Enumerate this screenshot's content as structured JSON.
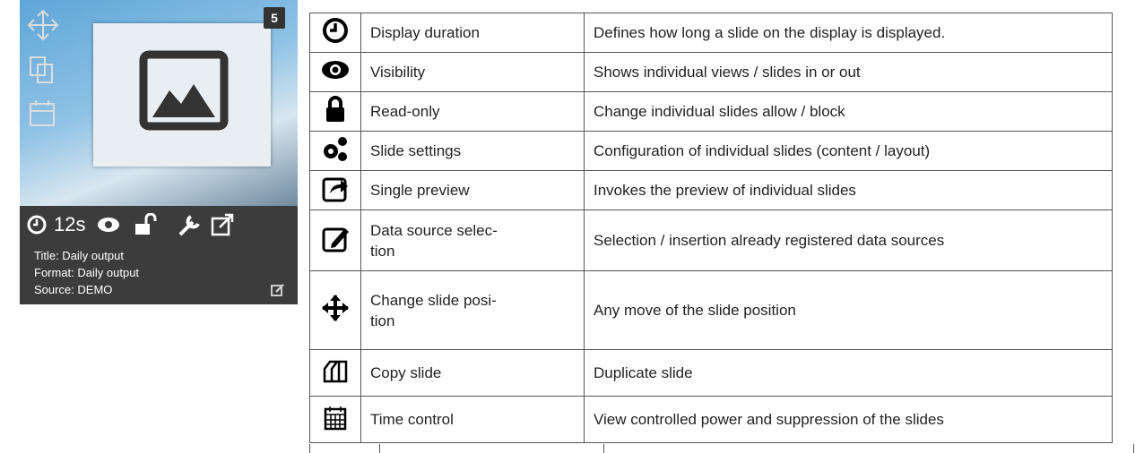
{
  "card": {
    "badge": "5",
    "duration": "12s",
    "lines": [
      "Title: Daily output",
      "Format: Daily output",
      "Source: DEMO"
    ]
  },
  "table": {
    "rows": [
      [
        "Display duration",
        "Defines how long a slide on the display is displayed."
      ],
      [
        "Visibility",
        "Shows individual views / slides in or out"
      ],
      [
        "Read-only",
        "Change individual slides allow / block"
      ],
      [
        "Slide settings",
        "Configuration of individual slides (content / layout)"
      ],
      [
        "Single preview",
        "Invokes the preview of individual slides"
      ],
      [
        "Data source selec-\ntion",
        "Selection / insertion already registered data sources"
      ],
      [
        "Change slide posi-\ntion",
        "Any move of the slide position"
      ],
      [
        "Copy slide",
        "Duplicate slide"
      ],
      [
        "Time control",
        "View controlled power and suppression of the slides"
      ]
    ]
  }
}
